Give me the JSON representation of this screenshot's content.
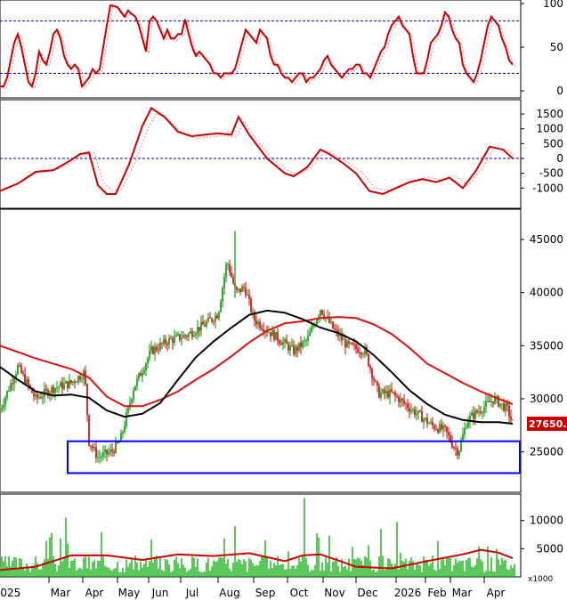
{
  "chart_data": [
    {
      "panel": "oscillator",
      "type": "line",
      "ylim": [
        0,
        100
      ],
      "y_ticks": [
        100,
        50,
        0
      ],
      "guide_levels": [
        80,
        20
      ],
      "series": [
        {
          "color": "#cc0000",
          "x": [
            0,
            4,
            8,
            12,
            16,
            20,
            24,
            28,
            32,
            36,
            40,
            44,
            48,
            52,
            56,
            60,
            64,
            68,
            72,
            76,
            80,
            84,
            88,
            92,
            96,
            100,
            104,
            108,
            112,
            116,
            120,
            124,
            128,
            132,
            136,
            140,
            144,
            148,
            152,
            156,
            160,
            164,
            168,
            172,
            176,
            180,
            184,
            188,
            192,
            196,
            200,
            204,
            208,
            212,
            216,
            220,
            224,
            228,
            232,
            236,
            240,
            244,
            248,
            252,
            256,
            260,
            264,
            268,
            272,
            276,
            280,
            284,
            288,
            292,
            296,
            300,
            304,
            308,
            312,
            316,
            320,
            324,
            328,
            332,
            336,
            340,
            344,
            348,
            352,
            356,
            360,
            364,
            368,
            372,
            376,
            380,
            384,
            388,
            392,
            396,
            400,
            404,
            408,
            412,
            416,
            420,
            424,
            428,
            432,
            436,
            440,
            444,
            448,
            452,
            456,
            460,
            464,
            468,
            472,
            476,
            480,
            484,
            488,
            492,
            496,
            500,
            504,
            508,
            512,
            516,
            520,
            524,
            528,
            532,
            536,
            540,
            544,
            548,
            552,
            556,
            560,
            564,
            568,
            572,
            576
          ],
          "values": [
            5,
            5,
            15,
            35,
            55,
            65,
            50,
            30,
            10,
            5,
            20,
            45,
            35,
            30,
            45,
            65,
            70,
            60,
            40,
            30,
            25,
            30,
            25,
            5,
            10,
            15,
            25,
            20,
            25,
            50,
            75,
            98,
            97,
            96,
            90,
            85,
            92,
            88,
            85,
            75,
            60,
            45,
            80,
            85,
            80,
            70,
            60,
            70,
            60,
            60,
            65,
            65,
            82,
            65,
            50,
            40,
            45,
            40,
            35,
            30,
            20,
            20,
            15,
            20,
            20,
            20,
            25,
            40,
            55,
            70,
            65,
            60,
            55,
            70,
            65,
            60,
            40,
            30,
            30,
            20,
            15,
            15,
            10,
            15,
            20,
            20,
            10,
            15,
            15,
            20,
            25,
            35,
            40,
            30,
            25,
            20,
            15,
            20,
            25,
            25,
            30,
            30,
            20,
            20,
            15,
            25,
            35,
            45,
            50,
            65,
            75,
            80,
            85,
            75,
            70,
            65,
            40,
            20,
            20,
            20,
            35,
            55,
            60,
            65,
            75,
            90,
            85,
            70,
            60,
            55,
            30,
            20,
            15,
            10,
            20,
            35,
            55,
            75,
            85,
            80,
            75,
            60,
            50,
            35,
            30
          ],
          "note": "hand-placed"
        }
      ]
    },
    {
      "panel": "macd",
      "type": "line",
      "ylim": [
        -1500,
        1800
      ],
      "y_ticks": [
        1500,
        1000,
        500,
        0,
        -500,
        -1000
      ],
      "guide_levels": [
        0
      ]
    },
    {
      "panel": "price",
      "type": "line",
      "y_ticks": [
        45000,
        40000,
        35000,
        30000,
        25000
      ],
      "last_price_label": "27650.00"
    },
    {
      "panel": "volume",
      "type": "bar",
      "y_ticks": [
        10000,
        5000
      ],
      "unit_label": "x1000"
    }
  ],
  "x_axis": {
    "labels": [
      "2025",
      "Mar",
      "Apr",
      "May",
      "Jun",
      "Jul",
      "Aug",
      "Sep",
      "Oct",
      "Nov",
      "Dec",
      "2026",
      "Feb",
      "Mar",
      "Apr"
    ]
  },
  "colors": {
    "main_line": "#cc0000",
    "signal_line": "#ee8888",
    "long_ma": "#dd1111",
    "short_ma": "#000000",
    "guide": "#0000cc",
    "candle_up": "#009900",
    "candle_down": "#cc0000",
    "zone_box": "#0000ff",
    "volume": "#00aa00"
  }
}
